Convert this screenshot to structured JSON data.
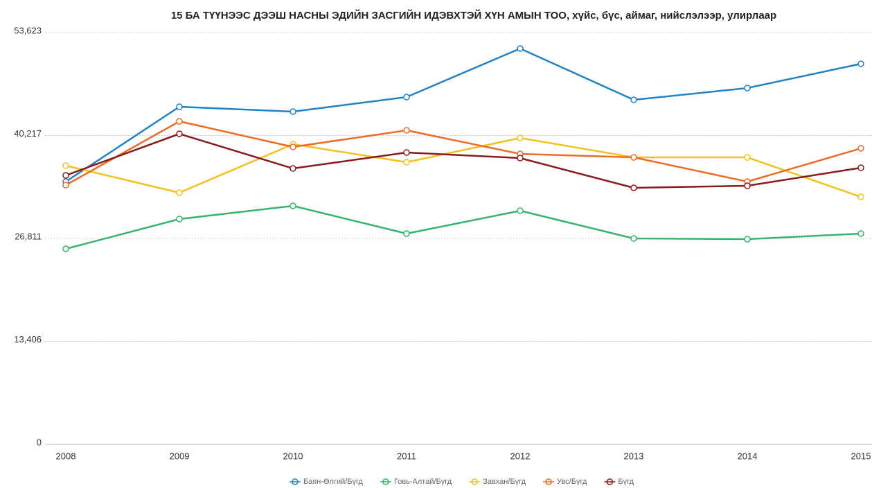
{
  "chart_data": {
    "type": "line",
    "title": "15 БА ТҮҮНЭЭС ДЭЭШ НАСНЫ ЭДИЙН ЗАСГИЙН ИДЭВХТЭЙ ХҮН АМЫН ТОО, хүйс, бүс, аймаг, нийслэлээр, улирлаар",
    "categories": [
      "2008",
      "2009",
      "2010",
      "2011",
      "2012",
      "2013",
      "2014",
      "2015"
    ],
    "series": [
      {
        "name": "Баян-Өлгий/Бүгд",
        "color": "#1f83c6",
        "values": [
          34213,
          43961,
          43330,
          45225,
          51544,
          44864,
          46399,
          49558
        ]
      },
      {
        "name": "Говь-Алтай/Бүгд",
        "color": "#33b56b",
        "values": [
          25456,
          29338,
          31053,
          27442,
          30421,
          26810,
          26720,
          27442
        ]
      },
      {
        "name": "Завхан/Бүгд",
        "color": "#f2c21b",
        "values": [
          36289,
          32768,
          39087,
          36740,
          39900,
          37372,
          37372,
          32226
        ]
      },
      {
        "name": "Увс/Бүгд",
        "color": "#ee6b26",
        "values": [
          33761,
          42066,
          38726,
          40892,
          37823,
          37372,
          34213,
          38545
        ]
      },
      {
        "name": "Бүгд",
        "color": "#8b1a1a",
        "values": [
          35025,
          40441,
          35927,
          38004,
          37282,
          33400,
          33671,
          36018
        ]
      }
    ],
    "ylim": [
      0,
      53623
    ],
    "yticks": [
      0,
      {
        "value": 13406,
        "label": "13,406"
      },
      {
        "value": 26811,
        "label": "26,811"
      },
      {
        "value": 40217,
        "label": "40,217"
      },
      {
        "value": 53623,
        "label": "53,623"
      }
    ],
    "grid": true,
    "legend": "bottom"
  }
}
